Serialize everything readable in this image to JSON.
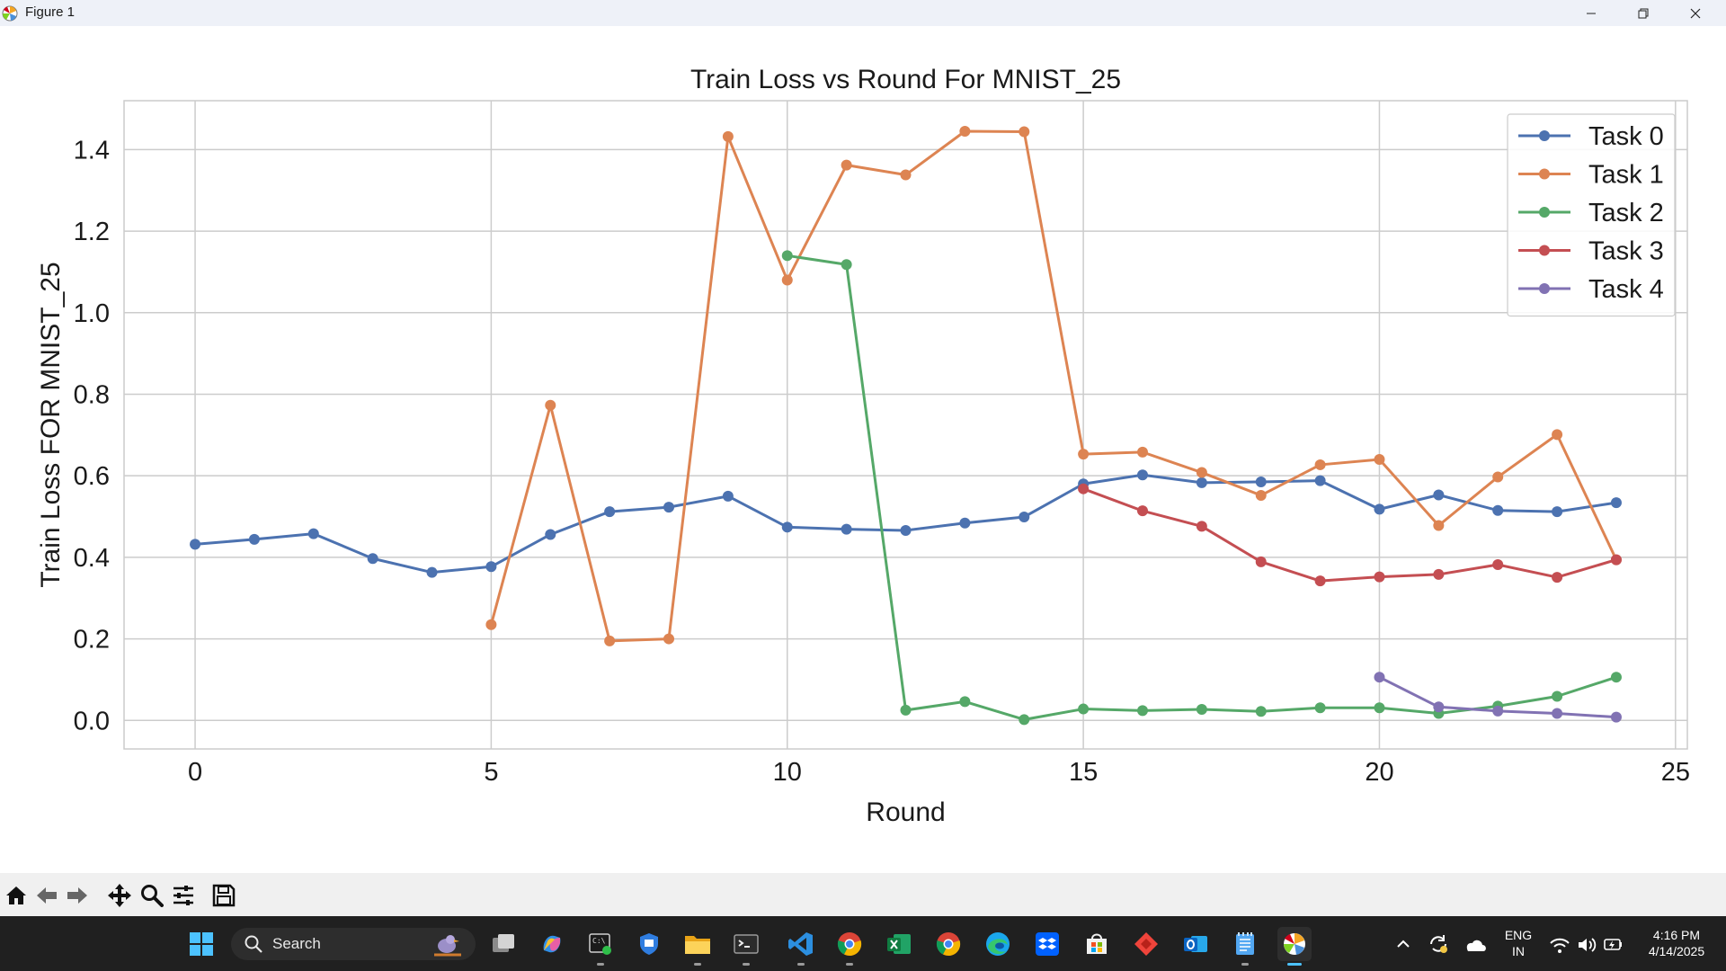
{
  "window": {
    "title": "Figure 1",
    "minimize_icon": "minimize-icon",
    "maximize_icon": "restore-icon",
    "close_icon": "close-icon"
  },
  "chart_data": {
    "type": "line",
    "title": "Train Loss vs Round For MNIST_25",
    "xlabel": "Round",
    "ylabel": "Train Loss FOR MNIST_25",
    "xlim": [
      -1.2,
      25.2
    ],
    "ylim": [
      -0.07,
      1.52
    ],
    "xticks": [
      0,
      5,
      10,
      15,
      20,
      25
    ],
    "yticks": [
      0.0,
      0.2,
      0.4,
      0.6,
      0.8,
      1.0,
      1.2,
      1.4
    ],
    "ytick_labels": [
      "0.0",
      "0.2",
      "0.4",
      "0.6",
      "0.8",
      "1.0",
      "1.2",
      "1.4"
    ],
    "grid": true,
    "legend_position": "top-right",
    "series": [
      {
        "name": "Task 0",
        "color": "#4c72b0",
        "x": [
          0,
          1,
          2,
          3,
          4,
          5,
          6,
          7,
          8,
          9,
          10,
          11,
          12,
          13,
          14,
          15,
          16,
          17,
          18,
          19,
          20,
          21,
          22,
          23,
          24
        ],
        "y": [
          0.432,
          0.444,
          0.458,
          0.397,
          0.363,
          0.377,
          0.456,
          0.512,
          0.523,
          0.55,
          0.474,
          0.469,
          0.466,
          0.484,
          0.499,
          0.58,
          0.602,
          0.583,
          0.585,
          0.588,
          0.518,
          0.553,
          0.515,
          0.512,
          0.534
        ]
      },
      {
        "name": "Task 1",
        "color": "#dd8452",
        "x": [
          5,
          6,
          7,
          8,
          9,
          10,
          11,
          12,
          13,
          14,
          15,
          16,
          17,
          18,
          19,
          20,
          21,
          22,
          23,
          24
        ],
        "y": [
          0.235,
          0.773,
          0.195,
          0.2,
          1.432,
          1.08,
          1.362,
          1.338,
          1.445,
          1.444,
          0.653,
          0.658,
          0.608,
          0.552,
          0.627,
          0.64,
          0.478,
          0.597,
          0.701,
          0.394
        ]
      },
      {
        "name": "Task 2",
        "color": "#55a868",
        "x": [
          10,
          11,
          12,
          13,
          14,
          15,
          16,
          17,
          18,
          19,
          20,
          21,
          22,
          23,
          24
        ],
        "y": [
          1.14,
          1.118,
          0.025,
          0.046,
          0.002,
          0.028,
          0.024,
          0.027,
          0.022,
          0.031,
          0.031,
          0.017,
          0.035,
          0.059,
          0.106
        ]
      },
      {
        "name": "Task 3",
        "color": "#c44e52",
        "x": [
          15,
          16,
          17,
          18,
          19,
          20,
          21,
          22,
          23,
          24
        ],
        "y": [
          0.568,
          0.514,
          0.476,
          0.389,
          0.342,
          0.352,
          0.358,
          0.382,
          0.351,
          0.394
        ]
      },
      {
        "name": "Task 4",
        "color": "#8172b3",
        "x": [
          20,
          21,
          22,
          23,
          24
        ],
        "y": [
          0.106,
          0.033,
          0.023,
          0.017,
          0.008
        ]
      }
    ]
  },
  "toolbar": {
    "buttons": [
      "home-icon",
      "back-arrow-icon",
      "forward-arrow-icon",
      "pan-icon",
      "zoom-icon",
      "configure-subplots-icon",
      "save-icon"
    ]
  },
  "taskbar": {
    "search_label": "Search",
    "apps": [
      "task-view",
      "copilot",
      "command-prompt",
      "windows-security",
      "file-explorer",
      "terminal",
      "vscode",
      "chrome-profile",
      "excel",
      "chrome",
      "edge",
      "dropbox",
      "microsoft-store",
      "anydesk",
      "outlook",
      "notepad",
      "python-figure"
    ],
    "language_line1": "ENG",
    "language_line2": "IN",
    "time": "4:16 PM",
    "date": "4/14/2025"
  }
}
